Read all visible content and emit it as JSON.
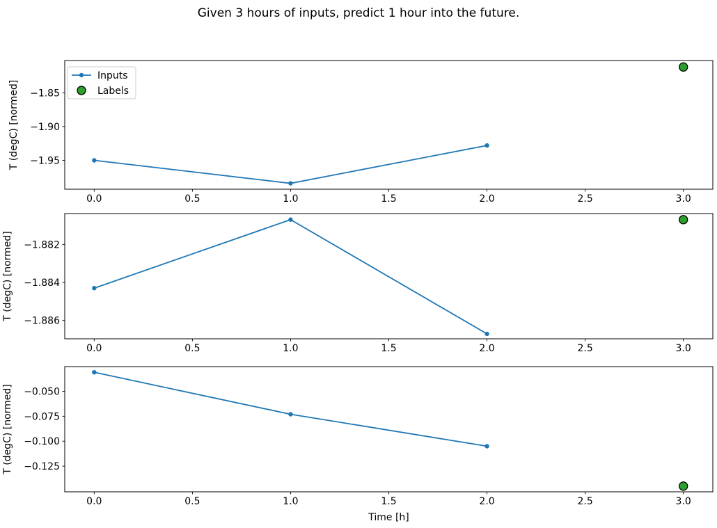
{
  "title": "Given 3 hours of inputs, predict 1 hour into the future.",
  "colors": {
    "inputs_line": "#1f77b4",
    "labels_fill": "#2ca02c",
    "labels_edge": "#000000",
    "axis": "#000000",
    "text": "#000000",
    "legend_border": "#cccccc",
    "background": "#ffffff"
  },
  "chart_data": [
    {
      "type": "line",
      "title": "",
      "xlabel": "",
      "ylabel": "T (degC) [normed]",
      "x": [
        0.0,
        1.0,
        2.0
      ],
      "series": [
        {
          "name": "Inputs",
          "values": [
            -1.95,
            -1.984,
            -1.928
          ]
        }
      ],
      "label_point": {
        "name": "Labels",
        "x": 3.0,
        "y": -1.812
      },
      "xlim": [
        -0.15,
        3.15
      ],
      "ylim": [
        -1.9927,
        -1.8024
      ],
      "xticks": [
        0.0,
        0.5,
        1.0,
        1.5,
        2.0,
        2.5,
        3.0
      ],
      "xtick_labels": [
        "0.0",
        "0.5",
        "1.0",
        "1.5",
        "2.0",
        "2.5",
        "3.0"
      ],
      "yticks": [
        -1.85,
        -1.9,
        -1.95
      ],
      "ytick_labels": [
        "−1.85",
        "−1.90",
        "−1.95"
      ],
      "grid": false,
      "legend": {
        "show": true,
        "location": "upper left",
        "entries": [
          "Inputs",
          "Labels"
        ]
      }
    },
    {
      "type": "line",
      "title": "",
      "xlabel": "",
      "ylabel": "T (degC) [normed]",
      "x": [
        0.0,
        1.0,
        2.0
      ],
      "series": [
        {
          "name": "Inputs",
          "values": [
            -1.8843,
            -1.8807,
            -1.8867
          ]
        }
      ],
      "label_point": {
        "name": "Labels",
        "x": 3.0,
        "y": -1.8807
      },
      "xlim": [
        -0.15,
        3.15
      ],
      "ylim": [
        -1.88696,
        -1.88038
      ],
      "xticks": [
        0.0,
        0.5,
        1.0,
        1.5,
        2.0,
        2.5,
        3.0
      ],
      "xtick_labels": [
        "0.0",
        "0.5",
        "1.0",
        "1.5",
        "2.0",
        "2.5",
        "3.0"
      ],
      "yticks": [
        -1.882,
        -1.884,
        -1.886
      ],
      "ytick_labels": [
        "−1.882",
        "−1.884",
        "−1.886"
      ],
      "grid": false,
      "legend": {
        "show": false,
        "location": "",
        "entries": []
      }
    },
    {
      "type": "line",
      "title": "",
      "xlabel": "Time [h]",
      "ylabel": "T (degC) [normed]",
      "x": [
        0.0,
        1.0,
        2.0
      ],
      "series": [
        {
          "name": "Inputs",
          "values": [
            -0.031,
            -0.073,
            -0.105
          ]
        }
      ],
      "label_point": {
        "name": "Labels",
        "x": 3.0,
        "y": -0.145
      },
      "xlim": [
        -0.15,
        3.15
      ],
      "ylim": [
        -0.1507,
        -0.0253
      ],
      "xticks": [
        0.0,
        0.5,
        1.0,
        1.5,
        2.0,
        2.5,
        3.0
      ],
      "xtick_labels": [
        "0.0",
        "0.5",
        "1.0",
        "1.5",
        "2.0",
        "2.5",
        "3.0"
      ],
      "yticks": [
        -0.05,
        -0.075,
        -0.1,
        -0.125
      ],
      "ytick_labels": [
        "−0.050",
        "−0.075",
        "−0.100",
        "−0.125"
      ],
      "grid": false,
      "legend": {
        "show": false,
        "location": "",
        "entries": []
      }
    }
  ]
}
